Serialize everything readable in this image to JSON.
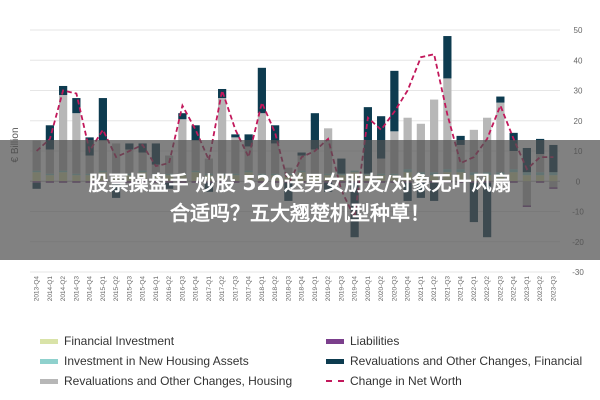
{
  "chart_data": {
    "type": "bar",
    "ylabel": "€ Billion",
    "ylim": [
      -30,
      50
    ],
    "yticks": [
      50,
      40,
      30,
      20,
      10,
      0,
      -10,
      -20,
      -30
    ],
    "grid": true,
    "categories": [
      "2013-Q4",
      "2014-Q1",
      "2014-Q2",
      "2014-Q3",
      "2014-Q4",
      "2015-Q1",
      "2015-Q2",
      "2015-Q3",
      "2015-Q4",
      "2016-Q1",
      "2016-Q2",
      "2016-Q3",
      "2016-Q4",
      "2017-Q1",
      "2017-Q2",
      "2017-Q3",
      "2017-Q4",
      "2018-Q1",
      "2018-Q2",
      "2018-Q3",
      "2018-Q4",
      "2019-Q1",
      "2019-Q2",
      "2019-Q3",
      "2019-Q4",
      "2020-Q1",
      "2020-Q2",
      "2020-Q3",
      "2020-Q4",
      "2021-Q1",
      "2021-Q2",
      "2021-Q3",
      "2021-Q4",
      "2022-Q1",
      "2022-Q2",
      "2022-Q3",
      "2022-Q4",
      "2023-Q1",
      "2023-Q2",
      "2023-Q3"
    ],
    "series": [
      {
        "name": "Financial Investment",
        "color": "#d9e3a8",
        "values": [
          3,
          2,
          3,
          2,
          2,
          3,
          2,
          2,
          3,
          2,
          2,
          2,
          3,
          2,
          2,
          2,
          3,
          2,
          2,
          2,
          3,
          2,
          2,
          2,
          3,
          2,
          2,
          2,
          3,
          2,
          2,
          3,
          3,
          2,
          2,
          2,
          3,
          2,
          2,
          2
        ]
      },
      {
        "name": "Investment in New Housing Assets",
        "color": "#8fd1cd",
        "values": [
          0.5,
          0.5,
          0.5,
          0.5,
          0.5,
          0.5,
          0.5,
          0.5,
          0.5,
          0.5,
          0.5,
          0.5,
          0.5,
          0.5,
          0.5,
          0.5,
          0.5,
          0.5,
          0.5,
          0.5,
          0.5,
          0.5,
          0.5,
          0.5,
          0.5,
          0.5,
          0.5,
          0.5,
          1,
          1,
          1,
          1,
          1,
          1,
          1,
          1,
          1,
          1,
          1,
          1
        ]
      },
      {
        "name": "Revaluations and Other Changes, Housing",
        "color": "#b7b7b7",
        "values": [
          10,
          8,
          25,
          20,
          6,
          10,
          10,
          8,
          6,
          3,
          6,
          18,
          10,
          5,
          25,
          12,
          8,
          20,
          10,
          2,
          5,
          8,
          15,
          0,
          0,
          0,
          5,
          14,
          17,
          16,
          24,
          30,
          8,
          14,
          18,
          23,
          6,
          -8,
          6,
          -2
        ]
      },
      {
        "name": "Liabilities",
        "color": "#7b3f8c",
        "values": [
          -0.5,
          -0.5,
          -0.5,
          -0.5,
          -0.5,
          -0.5,
          -0.5,
          -0.5,
          -0.5,
          -0.5,
          -0.5,
          -0.5,
          -0.5,
          -0.5,
          -0.5,
          -0.5,
          -0.5,
          -0.5,
          -0.5,
          -0.5,
          -0.5,
          -0.5,
          -0.5,
          -0.5,
          -0.5,
          -0.5,
          -0.5,
          -0.5,
          -0.5,
          -0.5,
          -0.5,
          -0.5,
          -0.5,
          -0.5,
          -0.5,
          -0.5,
          -0.5,
          -0.5,
          -0.5,
          -0.5
        ]
      },
      {
        "name": "Revaluations and Other Changes, Financial",
        "color": "#0d3b4f",
        "values": [
          -2,
          8,
          3,
          5,
          6,
          14,
          -5,
          2,
          3,
          7,
          -2,
          2,
          5,
          -3,
          3,
          1,
          4,
          15,
          6,
          -6,
          1,
          12,
          -3,
          5,
          -18,
          22,
          14,
          20,
          -6,
          -5,
          -6,
          14,
          3,
          -13,
          -18,
          2,
          6,
          8,
          5,
          9
        ]
      }
    ],
    "net_worth": {
      "name": "Change in Net Worth",
      "color": "#c2185b",
      "values": [
        10,
        14,
        30,
        29,
        10,
        17,
        8,
        10,
        12,
        5,
        6,
        25,
        17,
        7,
        30,
        17,
        8,
        26,
        16,
        -1,
        8,
        10,
        14,
        -3,
        -12,
        21,
        17,
        23,
        30,
        41,
        42,
        22,
        6,
        8,
        14,
        25,
        14,
        4,
        8,
        8
      ]
    }
  },
  "legend": {
    "financial_investment": "Financial Investment",
    "new_housing": "Investment in New Housing Assets",
    "reval_housing": "Revaluations and Other Changes, Housing",
    "liabilities": "Liabilities",
    "reval_financial": "Revaluations and Other Changes, Financial",
    "net_worth": "Change in Net Worth"
  },
  "overlay": {
    "line1": "股票操盘手 炒股 520送男女朋友/对象无叶风扇",
    "line2": "合适吗？五大翘楚机型种草！"
  }
}
